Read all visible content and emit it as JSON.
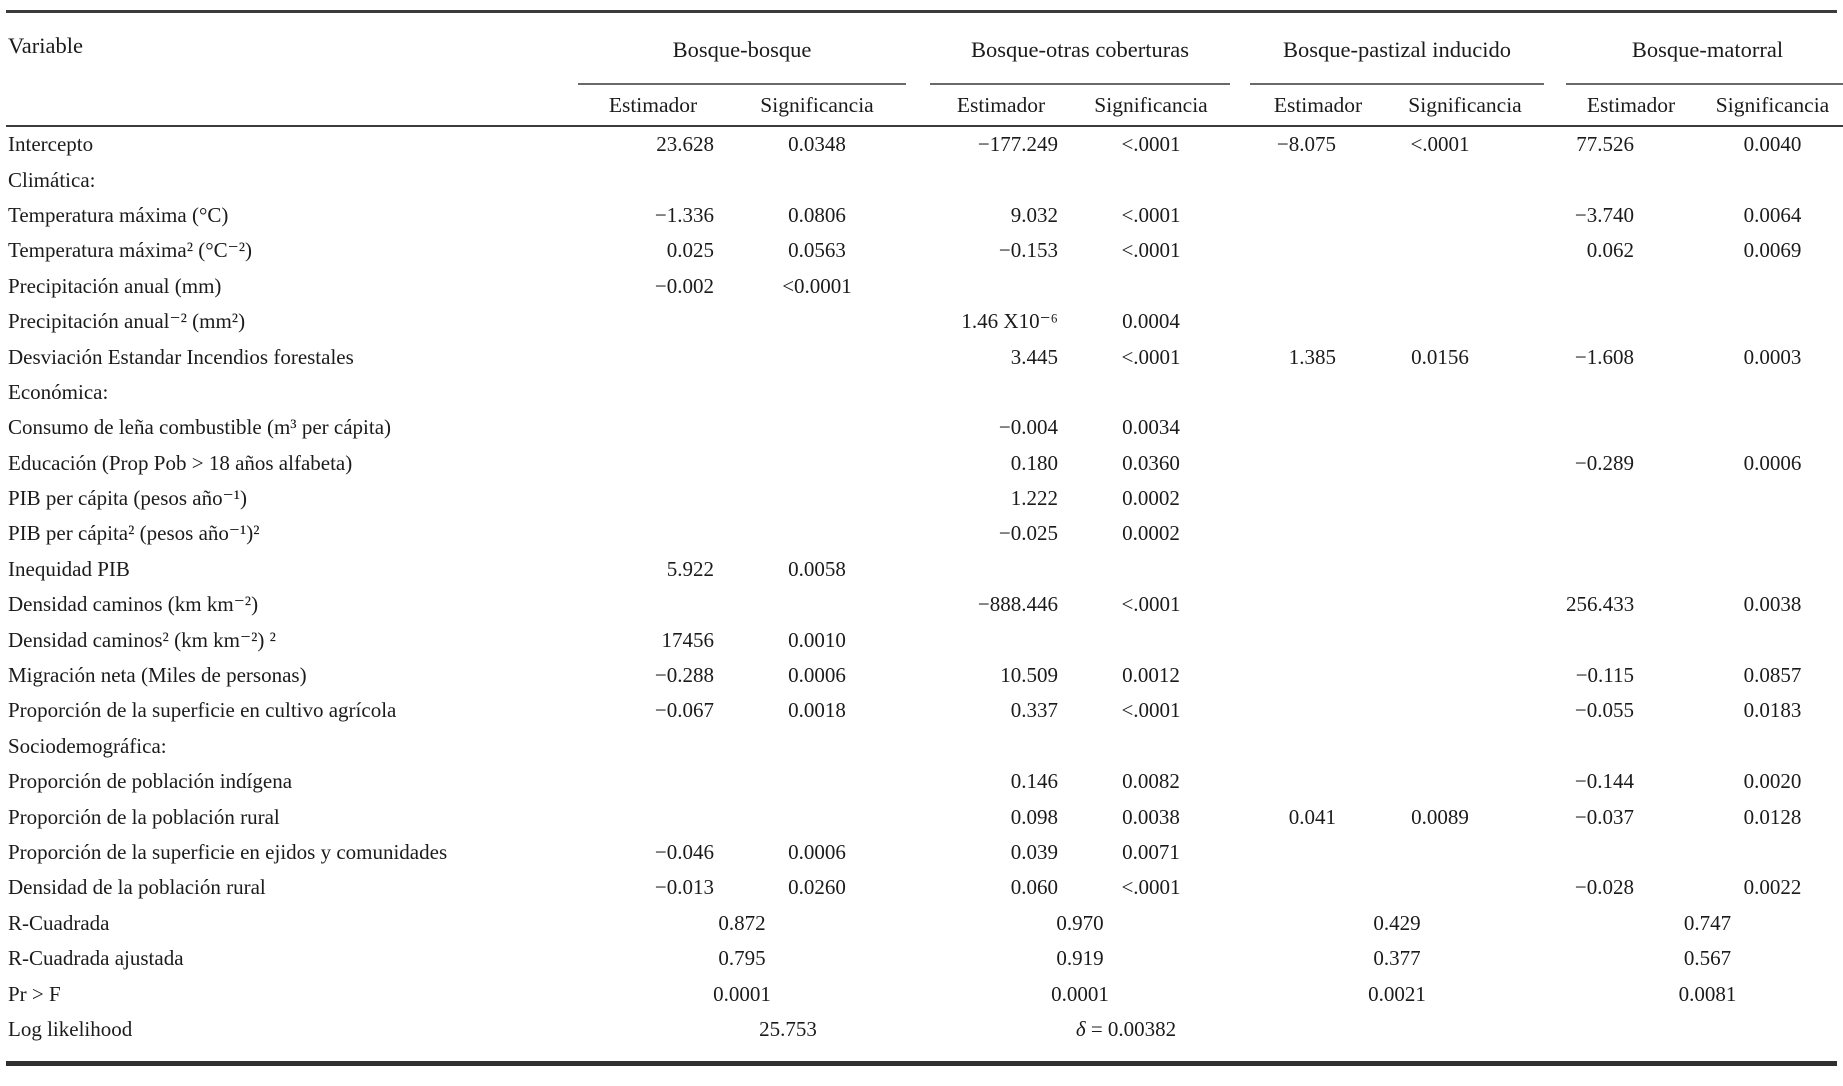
{
  "table": {
    "variable_header": "Variable",
    "groups": [
      {
        "label": "Bosque-bosque",
        "sub": [
          "Estimador",
          "Significancia"
        ]
      },
      {
        "label": "Bosque-otras coberturas",
        "sub": [
          "Estimador",
          "Significancia"
        ]
      },
      {
        "label": "Bosque-pastizal inducido",
        "sub": [
          "Estimador",
          "Significancia"
        ]
      },
      {
        "label": "Bosque-matorral",
        "sub": [
          "Estimador",
          "Significancia"
        ]
      }
    ],
    "rows": [
      {
        "type": "data",
        "label": "Intercepto",
        "cells": [
          "23.628",
          "0.0348",
          "−177.249",
          "<.0001",
          "−8.075",
          "<.0001",
          "77.526",
          "0.0040"
        ]
      },
      {
        "type": "section",
        "label": "Climática:",
        "cells": []
      },
      {
        "type": "data",
        "label": "Temperatura máxima (°C)",
        "cells": [
          "−1.336",
          "0.0806",
          "9.032",
          "<.0001",
          "",
          "",
          "−3.740",
          "0.0064"
        ]
      },
      {
        "type": "data",
        "label": "Temperatura máxima² (°C⁻²)",
        "cells": [
          "0.025",
          "0.0563",
          "−0.153",
          "<.0001",
          "",
          "",
          "0.062",
          "0.0069"
        ]
      },
      {
        "type": "data",
        "label": "Precipitación anual (mm)",
        "cells": [
          "−0.002",
          "<0.0001",
          "",
          "",
          "",
          "",
          "",
          ""
        ]
      },
      {
        "type": "data",
        "label": "Precipitación anual⁻² (mm²)",
        "cells": [
          "",
          "",
          "1.46 X10⁻⁶",
          "0.0004",
          "",
          "",
          "",
          ""
        ]
      },
      {
        "type": "data",
        "label": "Desviación Estandar Incendios forestales",
        "cells": [
          "",
          "",
          "3.445",
          "<.0001",
          "1.385",
          "0.0156",
          "−1.608",
          "0.0003"
        ]
      },
      {
        "type": "section",
        "label": "Económica:",
        "cells": []
      },
      {
        "type": "data",
        "label": "Consumo de leña combustible (m³ per cápita)",
        "cells": [
          "",
          "",
          "−0.004",
          "0.0034",
          "",
          "",
          "",
          ""
        ]
      },
      {
        "type": "data",
        "label": "Educación (Prop Pob > 18 años alfabeta)",
        "cells": [
          "",
          "",
          "0.180",
          "0.0360",
          "",
          "",
          "−0.289",
          "0.0006"
        ]
      },
      {
        "type": "data",
        "label": "PIB per cápita (pesos año⁻¹)",
        "cells": [
          "",
          "",
          "1.222",
          "0.0002",
          "",
          "",
          "",
          ""
        ]
      },
      {
        "type": "data",
        "label": "PIB per cápita² (pesos año⁻¹)²",
        "cells": [
          "",
          "",
          "−0.025",
          "0.0002",
          "",
          "",
          "",
          ""
        ]
      },
      {
        "type": "data",
        "label": "Inequidad PIB",
        "cells": [
          "5.922",
          "0.0058",
          "",
          "",
          "",
          "",
          "",
          ""
        ]
      },
      {
        "type": "data",
        "label": "Densidad caminos (km km⁻²)",
        "cells": [
          "",
          "",
          "−888.446",
          "<.0001",
          "",
          "",
          "256.433",
          "0.0038"
        ]
      },
      {
        "type": "data",
        "label": "Densidad caminos² (km km⁻²) ²",
        "cells": [
          "17456",
          "0.0010",
          "",
          "",
          "",
          "",
          "",
          ""
        ]
      },
      {
        "type": "data",
        "label": "Migración neta (Miles de personas)",
        "cells": [
          "−0.288",
          "0.0006",
          "10.509",
          "0.0012",
          "",
          "",
          "−0.115",
          "0.0857"
        ]
      },
      {
        "type": "data",
        "label": "Proporción de la superficie en cultivo agrícola",
        "cells": [
          "−0.067",
          "0.0018",
          "0.337",
          "<.0001",
          "",
          "",
          "−0.055",
          "0.0183"
        ]
      },
      {
        "type": "section",
        "label": "Sociodemográfica:",
        "cells": []
      },
      {
        "type": "data",
        "label": "Proporción de población indígena",
        "cells": [
          "",
          "",
          "0.146",
          "0.0082",
          "",
          "",
          "−0.144",
          "0.0020"
        ]
      },
      {
        "type": "data",
        "label": "Proporción de la población rural",
        "cells": [
          "",
          "",
          "0.098",
          "0.0038",
          "0.041",
          "0.0089",
          "−0.037",
          "0.0128"
        ]
      },
      {
        "type": "data",
        "label": "Proporción de la superficie en ejidos y comunidades",
        "cells": [
          "−0.046",
          "0.0006",
          "0.039",
          "0.0071",
          "",
          "",
          "",
          ""
        ]
      },
      {
        "type": "data",
        "label": "Densidad de la población rural",
        "cells": [
          "−0.013",
          "0.0260",
          "0.060",
          "<.0001",
          "",
          "",
          "−0.028",
          "0.0022"
        ]
      },
      {
        "type": "summary",
        "label": "R-Cuadrada",
        "cells": [
          "0.872",
          "0.970",
          "0.429",
          "0.747"
        ]
      },
      {
        "type": "summary",
        "label": "R-Cuadrada ajustada",
        "cells": [
          "0.795",
          "0.919",
          "0.377",
          "0.567"
        ]
      },
      {
        "type": "summary",
        "label": "Pr > F",
        "cells": [
          "0.0001",
          "0.0001",
          "0.0021",
          "0.0081"
        ]
      },
      {
        "type": "summary",
        "label": "Log likelihood",
        "offset": true,
        "cells": [
          "25.753",
          "δ = 0.00382",
          "",
          ""
        ]
      }
    ]
  }
}
